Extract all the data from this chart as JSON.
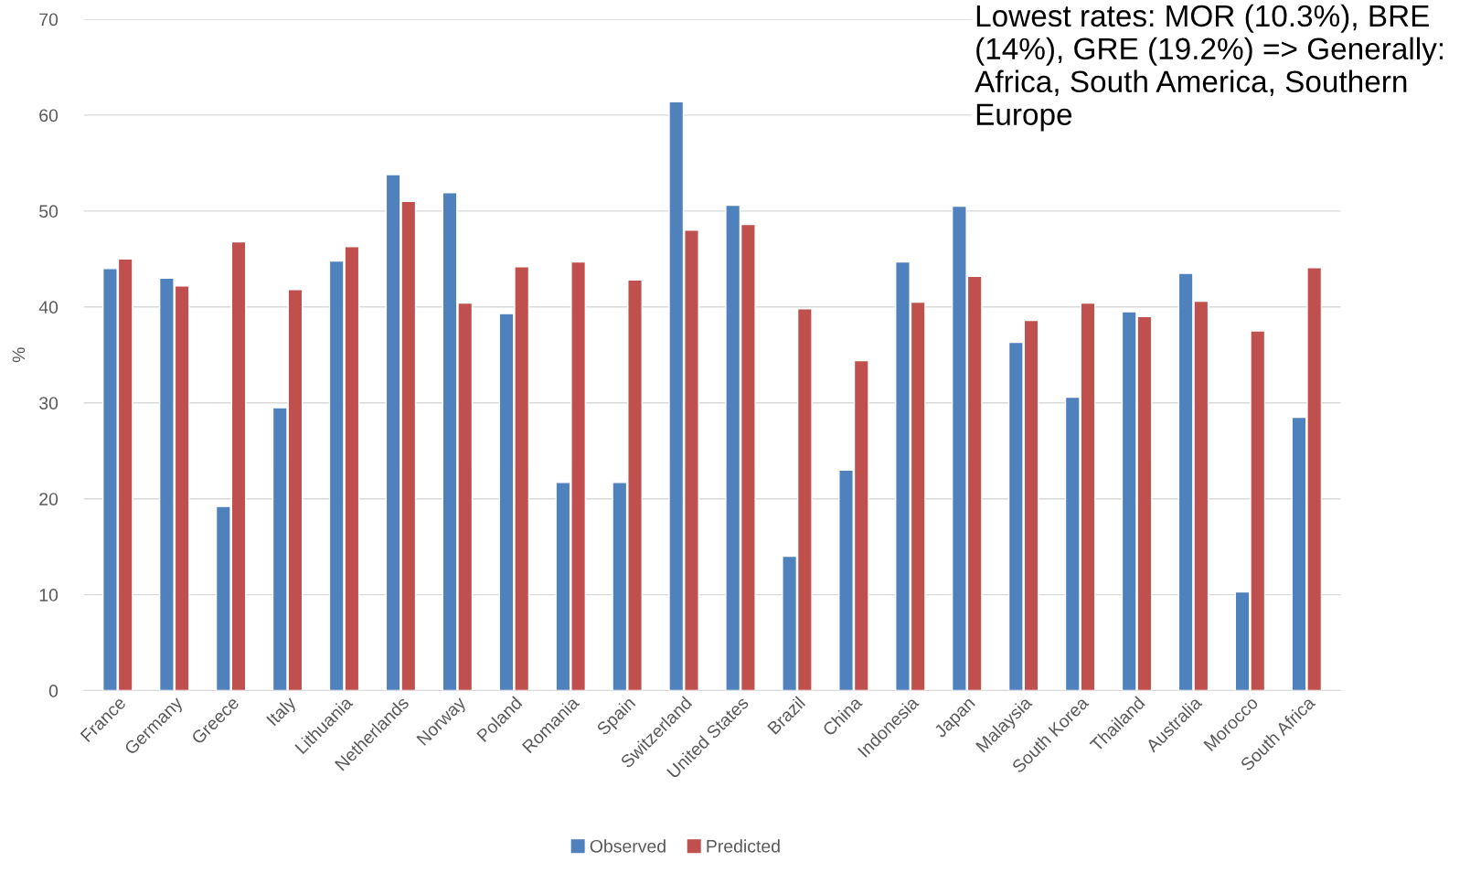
{
  "chart_data": {
    "type": "bar",
    "ylabel": "%",
    "categories": [
      "France",
      "Germany",
      "Greece",
      "Italy",
      "Lithuania",
      "Netherlands",
      "Norway",
      "Poland",
      "Romania",
      "Spain",
      "Switzerland",
      "United States",
      "Brazil",
      "China",
      "Indonesia",
      "Japan",
      "Malaysia",
      "South Korea",
      "Thailand",
      "Australia",
      "Morocco",
      "South Africa"
    ],
    "series": [
      {
        "name": "Observed",
        "color": "#4f81bd",
        "values": [
          44,
          43,
          19.2,
          29.5,
          44.8,
          53.8,
          51.9,
          39.3,
          21.7,
          21.7,
          61.4,
          50.6,
          14,
          23,
          44.7,
          50.5,
          36.3,
          30.6,
          39.5,
          43.5,
          10.3,
          28.5
        ]
      },
      {
        "name": "Predicted",
        "color": "#c0504d",
        "values": [
          45,
          42.2,
          46.8,
          41.8,
          46.3,
          51,
          40.4,
          44.2,
          44.7,
          42.8,
          48,
          48.6,
          39.8,
          34.4,
          40.5,
          43.2,
          38.6,
          40.4,
          39,
          40.6,
          37.5,
          44.1
        ]
      }
    ],
    "ylim": [
      0,
      70
    ],
    "yticks": [
      0,
      10,
      20,
      30,
      40,
      50,
      60,
      70
    ],
    "grid": "y",
    "legend": "bottom",
    "annotations": [
      "Lowest rates: MOR (10.3%), BRE (14%), GRE (19.2%) => Generally: Africa, South America, Southern Europe"
    ]
  }
}
